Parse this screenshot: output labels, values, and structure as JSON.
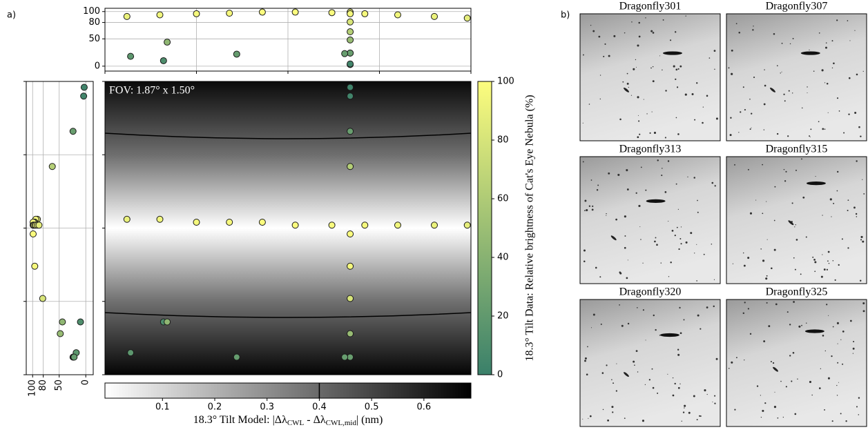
{
  "panel_labels": [
    "a)",
    "b)"
  ],
  "chart_data": {
    "type": "scatter",
    "annotation": "FOV: 1.87° x 1.50°",
    "xlim": [
      0,
      1
    ],
    "ylim": [
      0,
      1
    ],
    "xticks": [
      0,
      0.25,
      0.5,
      0.75,
      1
    ],
    "yticks": [
      0,
      0.25,
      0.5,
      0.75,
      1
    ],
    "x": [
      0.06,
      0.15,
      0.25,
      0.34,
      0.43,
      0.52,
      0.62,
      0.71,
      0.8,
      0.9,
      0.99,
      0.67,
      0.67,
      0.67,
      0.67,
      0.67,
      0.67,
      0.67,
      0.67,
      0.67,
      0.655,
      0.16,
      0.17,
      0.07,
      0.36
    ],
    "y": [
      0.53,
      0.53,
      0.52,
      0.52,
      0.52,
      0.51,
      0.51,
      0.51,
      0.51,
      0.51,
      0.51,
      0.98,
      0.95,
      0.83,
      0.71,
      0.48,
      0.37,
      0.26,
      0.14,
      0.06,
      0.06,
      0.18,
      0.18,
      0.075,
      0.06
    ],
    "values": [
      91,
      94,
      96,
      97,
      99,
      99,
      98,
      96,
      94,
      91,
      88,
      3,
      4,
      24,
      63,
      99,
      96,
      81,
      48,
      24,
      23,
      10,
      44,
      18,
      22
    ],
    "colormap": [
      "#3a806a",
      "#fdfd7e"
    ],
    "colorbar": {
      "label": "18.3° Tilt Data: Relative brightness of Cat's Eye Nebula (%)",
      "lim": [
        0,
        100
      ],
      "ticks": [
        0,
        20,
        40,
        60,
        80,
        100
      ]
    },
    "top_panel": {
      "ylim": [
        -9,
        106
      ],
      "yticks": [
        0,
        50,
        80,
        100
      ],
      "grid": true
    },
    "left_panel": {
      "xlim": [
        112,
        -14
      ],
      "xticks": [
        100,
        80,
        50,
        0
      ],
      "grid": true
    },
    "model": {
      "label": [
        "18.3° Tilt Model: |Δλ",
        "CWL",
        " - Δλ",
        "CWL,mid",
        "| (nm)"
      ],
      "lim": [
        -0.01,
        0.69
      ],
      "ticks": [
        0.1,
        0.2,
        0.3,
        0.4,
        0.5,
        0.6
      ],
      "contour": 0.4,
      "colors": [
        "#ffffff",
        "#000000"
      ]
    }
  },
  "images": [
    {
      "title": "Dragonfly301"
    },
    {
      "title": "Dragonfly307"
    },
    {
      "title": "Dragonfly313"
    },
    {
      "title": "Dragonfly315"
    },
    {
      "title": "Dragonfly320"
    },
    {
      "title": "Dragonfly325"
    }
  ]
}
